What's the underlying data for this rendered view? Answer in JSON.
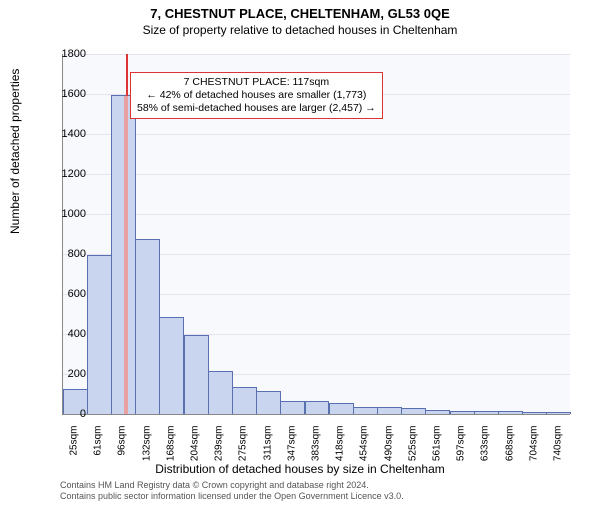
{
  "titles": {
    "main": "7, CHESTNUT PLACE, CHELTENHAM, GL53 0QE",
    "sub": "Size of property relative to detached houses in Cheltenham"
  },
  "axes": {
    "ylabel": "Number of detached properties",
    "xlabel": "Distribution of detached houses by size in Cheltenham",
    "ylim": [
      0,
      1800
    ],
    "ytick_step": 200,
    "yticks": [
      0,
      200,
      400,
      600,
      800,
      1000,
      1200,
      1400,
      1600,
      1800
    ],
    "xticks": [
      "25sqm",
      "61sqm",
      "96sqm",
      "132sqm",
      "168sqm",
      "204sqm",
      "239sqm",
      "275sqm",
      "311sqm",
      "347sqm",
      "383sqm",
      "418sqm",
      "454sqm",
      "490sqm",
      "525sqm",
      "561sqm",
      "597sqm",
      "633sqm",
      "668sqm",
      "704sqm",
      "740sqm"
    ]
  },
  "bars": {
    "values": [
      120,
      790,
      1590,
      870,
      480,
      390,
      210,
      130,
      110,
      60,
      60,
      50,
      30,
      30,
      25,
      15,
      10,
      12,
      8,
      5,
      5
    ],
    "fill_color": "#c9d4ee",
    "stroke_color": "#5a6fb0",
    "bar_width_frac": 0.95
  },
  "marker": {
    "value": 117,
    "xmin": 25,
    "xmax": 758,
    "line_color": "#d33",
    "bar_color": "#e8a0a0"
  },
  "annotation": {
    "line1": "7 CHESTNUT PLACE: 117sqm",
    "line2": "← 42% of detached houses are smaller (1,773)",
    "line3": "58% of semi-detached houses are larger (2,457) →",
    "border_color": "#d33"
  },
  "styling": {
    "plot_bg": "#f8f9fd",
    "grid_color": "#e2e4ee",
    "text_color": "#000000"
  },
  "credits": {
    "line1": "Contains HM Land Registry data © Crown copyright and database right 2024.",
    "line2": "Contains public sector information licensed under the Open Government Licence v3.0."
  }
}
